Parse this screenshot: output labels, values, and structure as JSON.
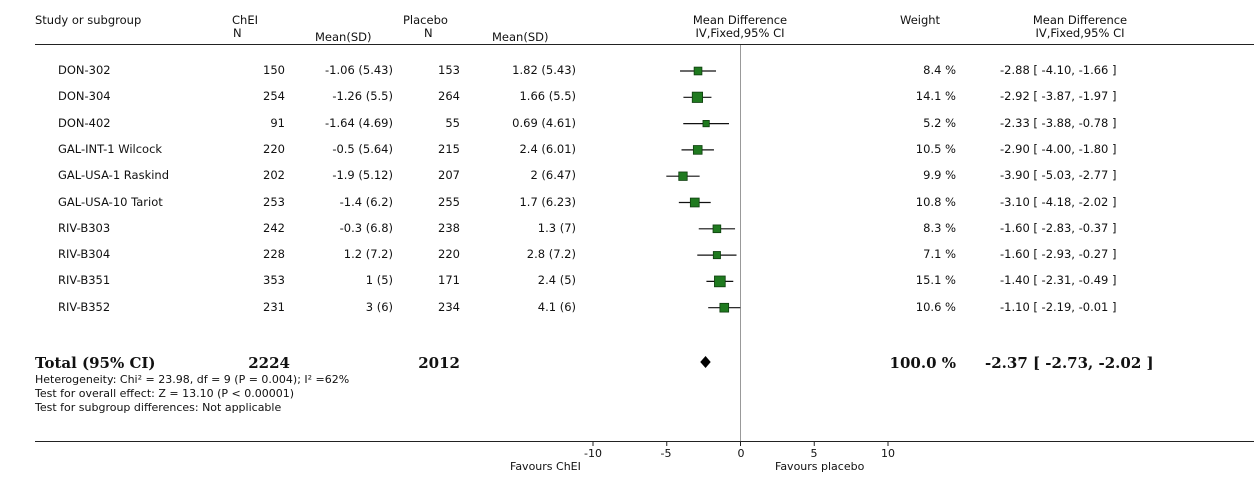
{
  "header": {
    "study_col": "Study or subgroup",
    "chei_group": "ChEI",
    "chei_n": "N",
    "chei_mean": "Mean(SD)",
    "placebo_group": "Placebo",
    "placebo_n": "N",
    "placebo_mean": "Mean(SD)",
    "md_title": "Mean Difference",
    "md_sub": "IV,Fixed,95% CI",
    "weight": "Weight",
    "md2_title": "Mean Difference",
    "md2_sub": "IV,Fixed,95% CI"
  },
  "rows": [
    {
      "study": "DON-302",
      "n1": "150",
      "m1": "-1.06 (5.43)",
      "n2": "153",
      "m2": "1.82 (5.43)",
      "weight": "8.4 %",
      "ci": "-2.88 [ -4.10, -1.66 ]"
    },
    {
      "study": "DON-304",
      "n1": "254",
      "m1": "-1.26 (5.5)",
      "n2": "264",
      "m2": "1.66 (5.5)",
      "weight": "14.1 %",
      "ci": "-2.92 [ -3.87, -1.97 ]"
    },
    {
      "study": "DON-402",
      "n1": "91",
      "m1": "-1.64 (4.69)",
      "n2": "55",
      "m2": "0.69 (4.61)",
      "weight": "5.2 %",
      "ci": "-2.33 [ -3.88, -0.78 ]"
    },
    {
      "study": "GAL-INT-1 Wilcock",
      "n1": "220",
      "m1": "-0.5 (5.64)",
      "n2": "215",
      "m2": "2.4 (6.01)",
      "weight": "10.5 %",
      "ci": "-2.90 [ -4.00, -1.80 ]"
    },
    {
      "study": "GAL-USA-1 Raskind",
      "n1": "202",
      "m1": "-1.9 (5.12)",
      "n2": "207",
      "m2": "2 (6.47)",
      "weight": "9.9 %",
      "ci": "-3.90 [ -5.03, -2.77 ]"
    },
    {
      "study": "GAL-USA-10 Tariot",
      "n1": "253",
      "m1": "-1.4 (6.2)",
      "n2": "255",
      "m2": "1.7 (6.23)",
      "weight": "10.8 %",
      "ci": "-3.10 [ -4.18, -2.02 ]"
    },
    {
      "study": "RIV-B303",
      "n1": "242",
      "m1": "-0.3 (6.8)",
      "n2": "238",
      "m2": "1.3 (7)",
      "weight": "8.3 %",
      "ci": "-1.60 [ -2.83, -0.37 ]"
    },
    {
      "study": "RIV-B304",
      "n1": "228",
      "m1": "1.2 (7.2)",
      "n2": "220",
      "m2": "2.8 (7.2)",
      "weight": "7.1 %",
      "ci": "-1.60 [ -2.93, -0.27 ]"
    },
    {
      "study": "RIV-B351",
      "n1": "353",
      "m1": "1 (5)",
      "n2": "171",
      "m2": "2.4 (5)",
      "weight": "15.1 %",
      "ci": "-1.40 [ -2.31, -0.49 ]"
    },
    {
      "study": "RIV-B352",
      "n1": "231",
      "m1": "3 (6)",
      "n2": "234",
      "m2": "4.1 (6)",
      "weight": "10.6 %",
      "ci": "-1.10 [ -2.19, -0.01 ]"
    }
  ],
  "total": {
    "label": "Total (95% CI)",
    "n1": "2224",
    "n2": "2012",
    "weight": "100.0 %",
    "ci": "-2.37 [ -2.73, -2.02 ]"
  },
  "stats": {
    "heterogeneity": "Heterogeneity: Chi² = 23.98, df = 9 (P = 0.004); I² =62%",
    "overall": "Test for overall effect: Z = 13.10 (P < 0.00001)",
    "subgroup": "Test for subgroup differences: Not applicable"
  },
  "axis": {
    "ticks": [
      "-10",
      "-5",
      "0",
      "5",
      "10"
    ],
    "favours_left": "Favours ChEI",
    "favours_right": "Favours placebo"
  },
  "chart_data": {
    "type": "forest",
    "xlim": [
      -10,
      10
    ],
    "xticks": [
      -10,
      -5,
      0,
      5,
      10
    ],
    "marker_color": "#1f7a1f",
    "studies": [
      {
        "name": "DON-302",
        "md": -2.88,
        "lo": -4.1,
        "hi": -1.66,
        "weight": 8.4
      },
      {
        "name": "DON-304",
        "md": -2.92,
        "lo": -3.87,
        "hi": -1.97,
        "weight": 14.1
      },
      {
        "name": "DON-402",
        "md": -2.33,
        "lo": -3.88,
        "hi": -0.78,
        "weight": 5.2
      },
      {
        "name": "GAL-INT-1 Wilcock",
        "md": -2.9,
        "lo": -4.0,
        "hi": -1.8,
        "weight": 10.5
      },
      {
        "name": "GAL-USA-1 Raskind",
        "md": -3.9,
        "lo": -5.03,
        "hi": -2.77,
        "weight": 9.9
      },
      {
        "name": "GAL-USA-10 Tariot",
        "md": -3.1,
        "lo": -4.18,
        "hi": -2.02,
        "weight": 10.8
      },
      {
        "name": "RIV-B303",
        "md": -1.6,
        "lo": -2.83,
        "hi": -0.37,
        "weight": 8.3
      },
      {
        "name": "RIV-B304",
        "md": -1.6,
        "lo": -2.93,
        "hi": -0.27,
        "weight": 7.1
      },
      {
        "name": "RIV-B351",
        "md": -1.4,
        "lo": -2.31,
        "hi": -0.49,
        "weight": 15.1
      },
      {
        "name": "RIV-B352",
        "md": -1.1,
        "lo": -2.19,
        "hi": -0.01,
        "weight": 10.6
      }
    ],
    "pooled": {
      "md": -2.37,
      "lo": -2.73,
      "hi": -2.02
    }
  }
}
